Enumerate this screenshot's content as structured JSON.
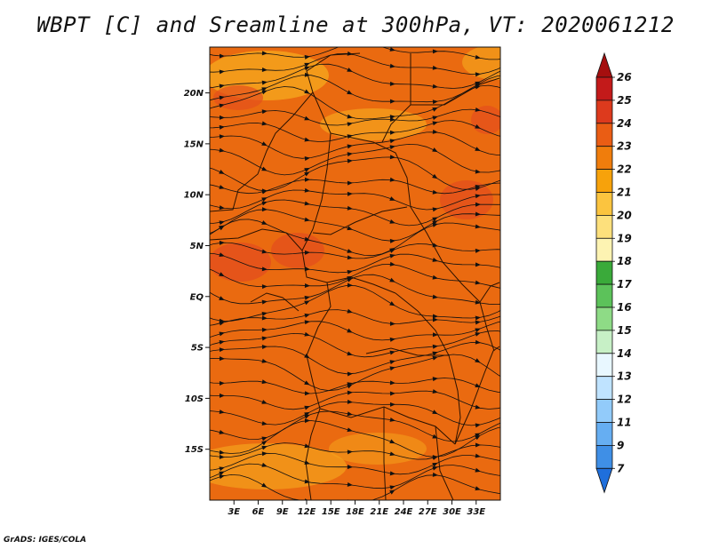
{
  "title": "WBPT [C] and Sreamline at 300hPa, VT: 2020061212",
  "credit": "GrADS: IGES/COLA",
  "map": {
    "lon_range": [
      0,
      36
    ],
    "lat_range": [
      -20,
      24.5
    ],
    "lat_ticks": [
      {
        "value": 20,
        "label": "20N"
      },
      {
        "value": 15,
        "label": "15N"
      },
      {
        "value": 10,
        "label": "10N"
      },
      {
        "value": 5,
        "label": "5N"
      },
      {
        "value": 0,
        "label": "EQ"
      },
      {
        "value": -5,
        "label": "5S"
      },
      {
        "value": -10,
        "label": "10S"
      },
      {
        "value": -15,
        "label": "15S"
      }
    ],
    "lon_ticks": [
      {
        "value": 3,
        "label": "3E"
      },
      {
        "value": 6,
        "label": "6E"
      },
      {
        "value": 9,
        "label": "9E"
      },
      {
        "value": 12,
        "label": "12E"
      },
      {
        "value": 15,
        "label": "15E"
      },
      {
        "value": 18,
        "label": "18E"
      },
      {
        "value": 21,
        "label": "21E"
      },
      {
        "value": 24,
        "label": "24E"
      },
      {
        "value": 27,
        "label": "27E"
      },
      {
        "value": 30,
        "label": "30E"
      },
      {
        "value": 33,
        "label": "33E"
      }
    ],
    "field_colors": {
      "base": "#ea6a10",
      "warm_patch": "#e4501c",
      "cool_patch": "#f4a21c"
    }
  },
  "colorbar": {
    "labels": [
      "26",
      "25",
      "24",
      "23",
      "22",
      "21",
      "20",
      "19",
      "18",
      "17",
      "16",
      "15",
      "14",
      "13",
      "12",
      "11",
      "9",
      "7"
    ],
    "colors": [
      "#a50f0f",
      "#c31a1a",
      "#dd3a1d",
      "#ea5d14",
      "#f07d0c",
      "#f7a20b",
      "#fbc43f",
      "#fde07c",
      "#fdf3b2",
      "#3aaa3a",
      "#5cc25a",
      "#8edb86",
      "#c7f0c6",
      "#e8f7ff",
      "#bfe3ff",
      "#92cbfa",
      "#66aef2",
      "#3f8fe6",
      "#1f6fdc"
    ]
  }
}
